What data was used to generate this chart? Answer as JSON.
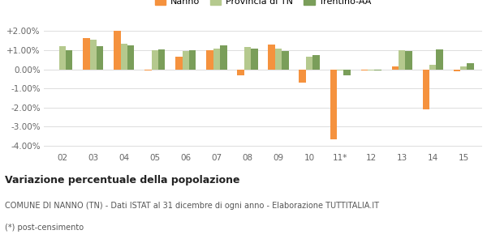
{
  "categories": [
    "02",
    "03",
    "04",
    "05",
    "06",
    "07",
    "08",
    "09",
    "10",
    "11*",
    "12",
    "13",
    "14",
    "15"
  ],
  "nanno": [
    null,
    1.65,
    2.0,
    -0.05,
    0.65,
    1.0,
    -0.3,
    1.3,
    -0.7,
    -3.65,
    -0.05,
    0.15,
    -2.1,
    -0.1
  ],
  "provincia": [
    1.2,
    1.55,
    1.35,
    1.0,
    0.95,
    1.1,
    1.15,
    1.1,
    0.65,
    -0.05,
    -0.05,
    1.0,
    0.25,
    0.15
  ],
  "trentino": [
    1.0,
    1.2,
    1.25,
    1.05,
    1.0,
    1.25,
    1.1,
    0.95,
    0.75,
    -0.3,
    -0.05,
    0.95,
    1.05,
    0.3
  ],
  "nanno_color": "#f5923e",
  "provincia_color": "#b5c98e",
  "trentino_color": "#7a9e5a",
  "bg_color": "#ffffff",
  "grid_color": "#dddddd",
  "title": "Variazione percentuale della popolazione",
  "footer1": "COMUNE DI NANNO (TN) - Dati ISTAT al 31 dicembre di ogni anno - Elaborazione TUTTITALIA.IT",
  "footer2": "(*) post-censimento",
  "legend_labels": [
    "Nanno",
    "Provincia di TN",
    "Trentino-AA"
  ],
  "ylim": [
    -4.25,
    2.35
  ],
  "yticks": [
    -4.0,
    -3.0,
    -2.0,
    -1.0,
    0.0,
    1.0,
    2.0
  ],
  "ytick_labels": [
    "-4.00%",
    "-3.00%",
    "-2.00%",
    "-1.00%",
    "0.00%",
    "+1.00%",
    "+2.00%"
  ],
  "bar_width": 0.22,
  "figsize": [
    6.0,
    3.0
  ],
  "dpi": 100
}
